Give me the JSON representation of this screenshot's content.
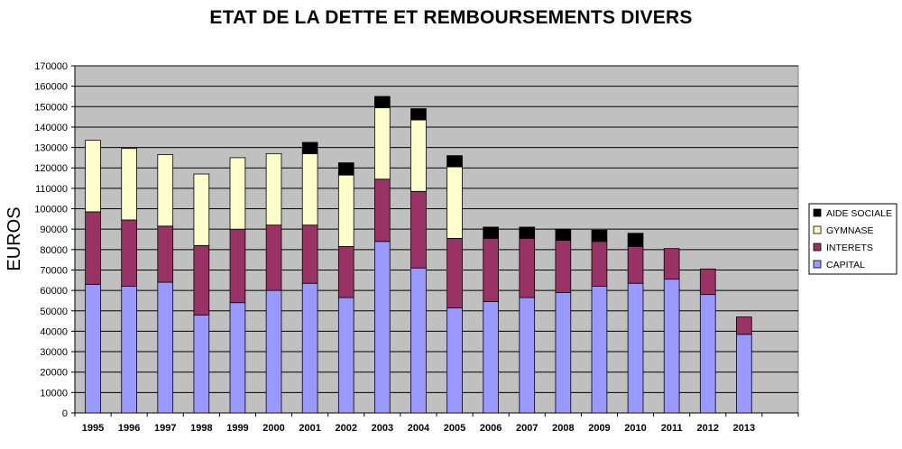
{
  "chart_data": {
    "type": "bar",
    "stacked": true,
    "title": "ETAT DE LA DETTE ET REMBOURSEMENTS DIVERS",
    "xlabel": "",
    "ylabel": "EUROS",
    "ylim": [
      0,
      170000
    ],
    "ytick_step": 10000,
    "grid": true,
    "legend_placement": "right",
    "plot_background": "#c0c0c0",
    "categories": [
      "1995",
      "1996",
      "1997",
      "1998",
      "1999",
      "2000",
      "2001",
      "2002",
      "2003",
      "2004",
      "2005",
      "2006",
      "2007",
      "2008",
      "2009",
      "2010",
      "2011",
      "2012",
      "2013"
    ],
    "series": [
      {
        "name": "CAPITAL",
        "color": "#9999ff",
        "values": [
          63000,
          62000,
          64000,
          48000,
          54000,
          60000,
          63500,
          56500,
          84000,
          71000,
          51500,
          54500,
          56500,
          59000,
          62000,
          63500,
          65500,
          58000,
          38500
        ]
      },
      {
        "name": "INTERETS",
        "color": "#993366",
        "values": [
          35500,
          32500,
          27500,
          34000,
          36000,
          32000,
          28500,
          25000,
          30500,
          37500,
          34000,
          31000,
          29000,
          25500,
          22000,
          18000,
          15000,
          12500,
          8500
        ]
      },
      {
        "name": "GYMNASE",
        "color": "#ffffcc",
        "values": [
          35000,
          35000,
          35000,
          35000,
          35000,
          35000,
          35000,
          35000,
          35000,
          35000,
          35000,
          0,
          0,
          0,
          0,
          0,
          0,
          0,
          0
        ]
      },
      {
        "name": "AIDE SOCIALE",
        "color": "#000000",
        "values": [
          0,
          0,
          0,
          0,
          0,
          0,
          5500,
          6000,
          5500,
          5500,
          5500,
          5500,
          5500,
          5500,
          5500,
          6500,
          0,
          0,
          0
        ]
      }
    ]
  }
}
